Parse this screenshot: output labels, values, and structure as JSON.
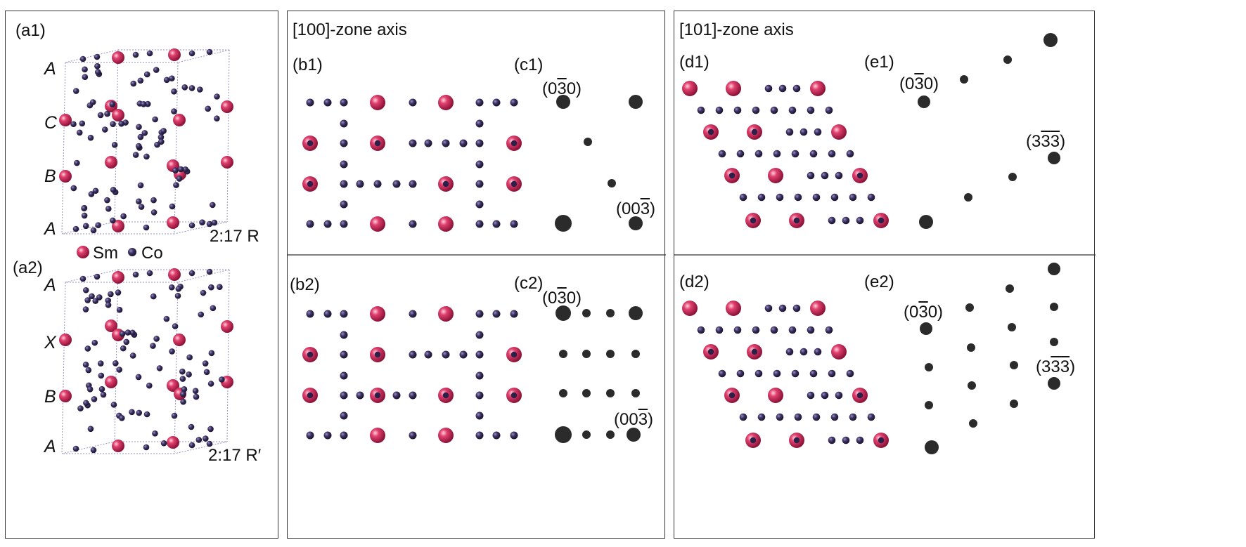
{
  "panel_a": {
    "a1": {
      "label": "(a1)",
      "stacking": [
        "A",
        "C",
        "B",
        "A"
      ],
      "phase": "2:17 R"
    },
    "a2": {
      "label": "(a2)",
      "stacking": [
        "A",
        "X",
        "B",
        "A"
      ],
      "phase": "2:17 R′"
    },
    "legend": [
      {
        "name": "Sm",
        "color": "#d02a5e"
      },
      {
        "name": "Co",
        "color": "#3a2e58"
      }
    ]
  },
  "panel_b": {
    "title": "[100]-zone axis",
    "b1_label": "(b1)",
    "c1_label": "(c1)",
    "b2_label": "(b2)",
    "c2_label": "(c2)",
    "c1_spots": [
      {
        "prefix": "(0",
        "bar": "3",
        "mid": "",
        "bar2": "",
        "suffix": "0)"
      },
      {
        "prefix": "(00",
        "bar": "3",
        "mid": "",
        "bar2": "",
        "suffix": ")"
      }
    ],
    "c2_spots": [
      {
        "prefix": "(0",
        "bar": "3",
        "mid": "",
        "bar2": "",
        "suffix": "0)"
      },
      {
        "prefix": "(00",
        "bar": "3",
        "mid": "",
        "bar2": "",
        "suffix": ")"
      }
    ]
  },
  "panel_d": {
    "title": "[101]-zone axis",
    "d1_label": "(d1)",
    "e1_label": "(e1)",
    "d2_label": "(d2)",
    "e2_label": "(e2)",
    "e1_spots": [
      {
        "prefix": "(0",
        "bar": "3",
        "mid": "",
        "bar2": "",
        "suffix": "0)"
      },
      {
        "prefix": "(3",
        "bar": "3",
        "mid": "",
        "bar2": "3",
        "suffix": ")"
      }
    ],
    "e2_spots": [
      {
        "prefix": "(0",
        "bar": "3",
        "mid": "",
        "bar2": "",
        "suffix": "0)"
      },
      {
        "prefix": "(3",
        "bar": "3",
        "mid": "",
        "bar2": "3",
        "suffix": ")"
      }
    ]
  },
  "colors": {
    "sm": "#d02a5e",
    "co": "#3a2e58",
    "spot": "#2b2b2b",
    "cell_edge": "#9a8fc0"
  }
}
